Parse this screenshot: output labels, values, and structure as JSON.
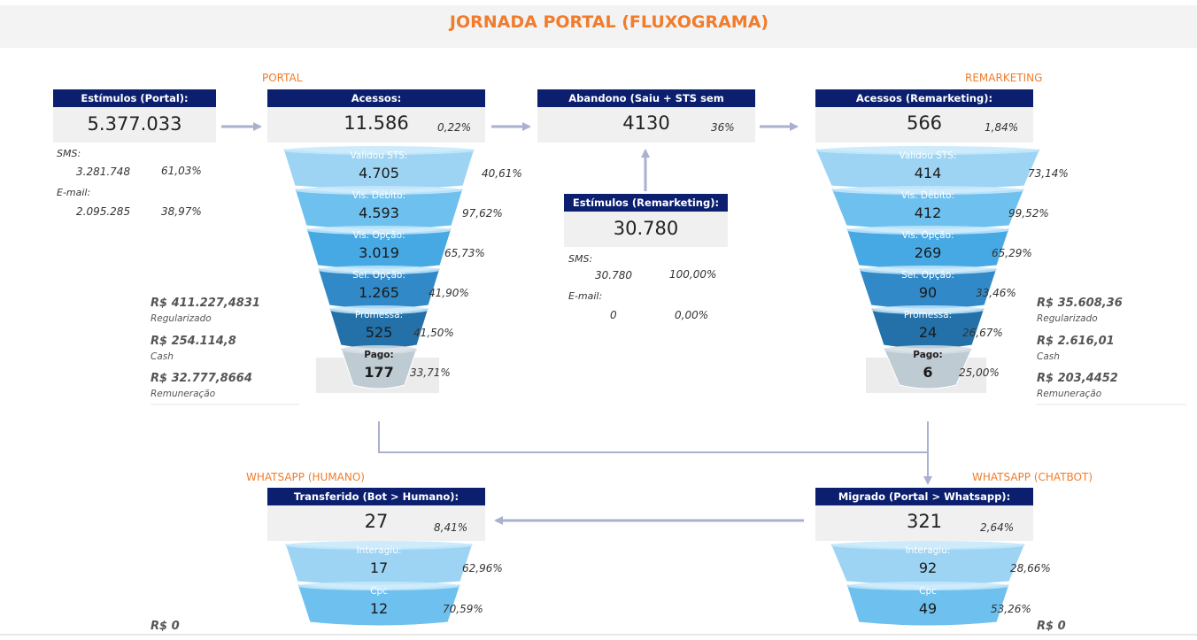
{
  "title": "JORNADA PORTAL (FLUXOGRAMA)",
  "sections": {
    "portal": "PORTAL",
    "remarketing": "REMARKETING",
    "whatsapp_humano": "WHATSAPP (HUMANO)",
    "whatsapp_chatbot": "WHATSAPP (CHATBOT)"
  },
  "stimulus_portal": {
    "header": "Estímulos (Portal):",
    "value": "5.377.033",
    "sms_label": "SMS:",
    "sms_value": "3.281.748",
    "sms_pct": "61,03%",
    "email_label": "E-mail:",
    "email_value": "2.095.285",
    "email_pct": "38,97%"
  },
  "acessos": {
    "header": "Acessos:",
    "value": "11.586",
    "pct": "0,22%"
  },
  "abandono": {
    "header": "Abandono (Saiu + STS sem Promessa):",
    "value": "4130",
    "pct": "36%"
  },
  "acessos_remarketing": {
    "header": "Acessos (Remarketing):",
    "value": "566",
    "pct": "1,84%"
  },
  "stimulus_remarketing": {
    "header": "Estímulos (Remarketing):",
    "value": "30.780",
    "sms_label": "SMS:",
    "sms_value": "30.780",
    "sms_pct": "100,00%",
    "email_label": "E-mail:",
    "email_value": "0",
    "email_pct": "0,00%"
  },
  "portal_money": {
    "regularizado": "R$ 411.227,4831",
    "regularizado_label": "Regularizado",
    "cash": "R$ 254.114,8",
    "cash_label": "Cash",
    "remuneracao": "R$ 32.777,8664",
    "remuneracao_label": "Remuneração"
  },
  "remarketing_money": {
    "regularizado": "R$ 35.608,36",
    "regularizado_label": "Regularizado",
    "cash": "R$ 2.616,01",
    "cash_label": "Cash",
    "remuneracao": "R$ 203,4452",
    "remuneracao_label": "Remuneração"
  },
  "transferido": {
    "header": "Transferido (Bot > Humano):",
    "value": "27",
    "pct": "8,41%"
  },
  "migrado": {
    "header": "Migrado (Portal > Whatsapp):",
    "value": "321",
    "pct": "2,64%"
  },
  "humano_money": "R$ 0",
  "chatbot_money": "R$ 0",
  "chart_data": [
    {
      "type": "funnel",
      "stages": [
        {
          "label": "Validou STS:",
          "value": "4.705",
          "pct": "40,61%"
        },
        {
          "label": "Vis. Débito:",
          "value": "4.593",
          "pct": "97,62%"
        },
        {
          "label": "Vis. Opção:",
          "value": "3.019",
          "pct": "65,73%"
        },
        {
          "label": "Sel. Opção:",
          "value": "1.265",
          "pct": "41,90%"
        },
        {
          "label": "Promessa:",
          "value": "525",
          "pct": "41,50%"
        },
        {
          "label": "Pago:",
          "value": "177",
          "pct": "33,71%"
        }
      ]
    },
    {
      "type": "funnel",
      "stages": [
        {
          "label": "Validou STS:",
          "value": "414",
          "pct": "73,14%"
        },
        {
          "label": "Vis. Débito:",
          "value": "412",
          "pct": "99,52%"
        },
        {
          "label": "Vis. Opção:",
          "value": "269",
          "pct": "65,29%"
        },
        {
          "label": "Sel. Opção:",
          "value": "90",
          "pct": "33,46%"
        },
        {
          "label": "Promessa:",
          "value": "24",
          "pct": "26,67%"
        },
        {
          "label": "Pago:",
          "value": "6",
          "pct": "25,00%"
        }
      ]
    },
    {
      "type": "funnel",
      "stages": [
        {
          "label": "Interagiu:",
          "value": "17",
          "pct": "62,96%"
        },
        {
          "label": "Cpc",
          "value": "12",
          "pct": "70,59%"
        }
      ]
    },
    {
      "type": "funnel",
      "stages": [
        {
          "label": "Interagiu:",
          "value": "92",
          "pct": "28,66%"
        },
        {
          "label": "Cpc",
          "value": "49",
          "pct": "53,26%"
        }
      ]
    }
  ]
}
